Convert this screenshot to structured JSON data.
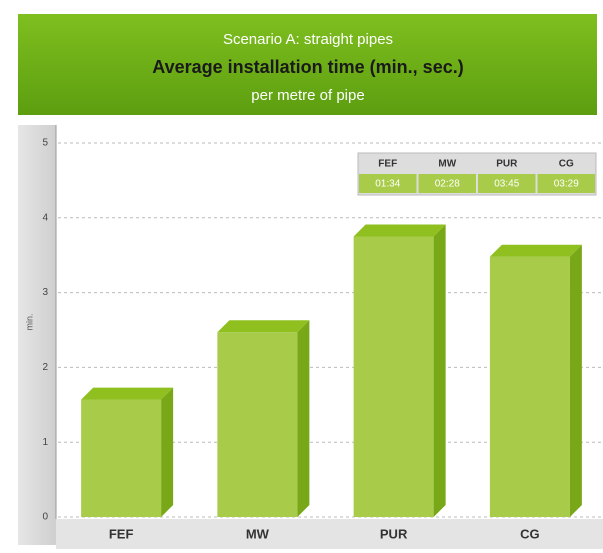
{
  "chart_data": {
    "type": "bar",
    "supertitle": "Scenario A: straight pipes",
    "title": "Average installation time (min., sec.)",
    "subtitle": "per metre of pipe",
    "ylabel": "min.",
    "categories": [
      "FEF",
      "MW",
      "PUR",
      "CG"
    ],
    "values": [
      1.57,
      2.47,
      3.75,
      3.48
    ],
    "value_labels": [
      "01:34",
      "02:28",
      "03:45",
      "03:29"
    ],
    "color": "#a8cc4a",
    "ylim": [
      0,
      5
    ],
    "yticks": [
      0,
      1,
      2,
      3,
      4,
      5
    ],
    "grid": true
  }
}
